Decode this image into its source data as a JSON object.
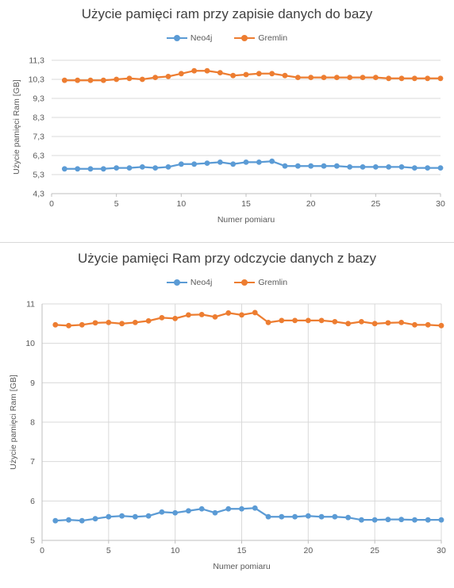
{
  "chart_data": [
    {
      "type": "line",
      "title": "Użycie pamięci ram przy zapisie danych do bazy",
      "xlabel": "Numer pomiaru",
      "ylabel": "Użycie pamięci Ram [GB]",
      "xlim": [
        0,
        30
      ],
      "ylim": [
        4.3,
        11.3
      ],
      "xticks": [
        "0",
        "5",
        "10",
        "15",
        "20",
        "25",
        "30"
      ],
      "yticks": [
        "4,3",
        "5,3",
        "6,3",
        "7,3",
        "8,3",
        "9,3",
        "10,3",
        "11,3"
      ],
      "grid": "horizontal",
      "legend": "top",
      "x": [
        1,
        2,
        3,
        4,
        5,
        6,
        7,
        8,
        9,
        10,
        11,
        12,
        13,
        14,
        15,
        16,
        17,
        18,
        19,
        20,
        21,
        22,
        23,
        24,
        25,
        26,
        27,
        28,
        29,
        30
      ],
      "series": [
        {
          "name": "Neo4j",
          "color": "#5b9bd5",
          "values": [
            5.6,
            5.6,
            5.6,
            5.6,
            5.65,
            5.65,
            5.7,
            5.65,
            5.7,
            5.85,
            5.85,
            5.9,
            5.95,
            5.85,
            5.95,
            5.95,
            6.0,
            5.75,
            5.75,
            5.75,
            5.75,
            5.75,
            5.7,
            5.7,
            5.7,
            5.7,
            5.7,
            5.65,
            5.65,
            5.65
          ]
        },
        {
          "name": "Gremlin",
          "color": "#ed7d31",
          "values": [
            10.25,
            10.25,
            10.25,
            10.25,
            10.3,
            10.35,
            10.3,
            10.4,
            10.45,
            10.6,
            10.75,
            10.75,
            10.65,
            10.5,
            10.55,
            10.6,
            10.6,
            10.5,
            10.4,
            10.4,
            10.4,
            10.4,
            10.4,
            10.4,
            10.4,
            10.35,
            10.35,
            10.35,
            10.35,
            10.35
          ]
        }
      ]
    },
    {
      "type": "line",
      "title": "Użycie pamięci Ram przy odczycie danych z bazy",
      "xlabel": "Numer pomiaru",
      "ylabel": "Użycie pamięci Ram [GB]",
      "xlim": [
        0,
        30
      ],
      "ylim": [
        5,
        11
      ],
      "xticks": [
        "0",
        "5",
        "10",
        "15",
        "20",
        "25",
        "30"
      ],
      "yticks": [
        "5",
        "6",
        "7",
        "8",
        "9",
        "10",
        "11"
      ],
      "grid": "both",
      "legend": "top",
      "x": [
        1,
        2,
        3,
        4,
        5,
        6,
        7,
        8,
        9,
        10,
        11,
        12,
        13,
        14,
        15,
        16,
        17,
        18,
        19,
        20,
        21,
        22,
        23,
        24,
        25,
        26,
        27,
        28,
        29,
        30
      ],
      "series": [
        {
          "name": "Neo4j",
          "color": "#5b9bd5",
          "values": [
            5.5,
            5.52,
            5.5,
            5.55,
            5.6,
            5.62,
            5.6,
            5.62,
            5.72,
            5.7,
            5.75,
            5.8,
            5.7,
            5.8,
            5.8,
            5.82,
            5.6,
            5.6,
            5.6,
            5.62,
            5.6,
            5.6,
            5.58,
            5.52,
            5.52,
            5.53,
            5.53,
            5.52,
            5.52,
            5.52
          ]
        },
        {
          "name": "Gremlin",
          "color": "#ed7d31",
          "values": [
            10.47,
            10.45,
            10.47,
            10.52,
            10.53,
            10.5,
            10.53,
            10.57,
            10.65,
            10.63,
            10.72,
            10.73,
            10.67,
            10.77,
            10.72,
            10.78,
            10.53,
            10.58,
            10.58,
            10.58,
            10.58,
            10.55,
            10.5,
            10.55,
            10.5,
            10.52,
            10.53,
            10.47,
            10.47,
            10.45
          ]
        }
      ]
    }
  ]
}
